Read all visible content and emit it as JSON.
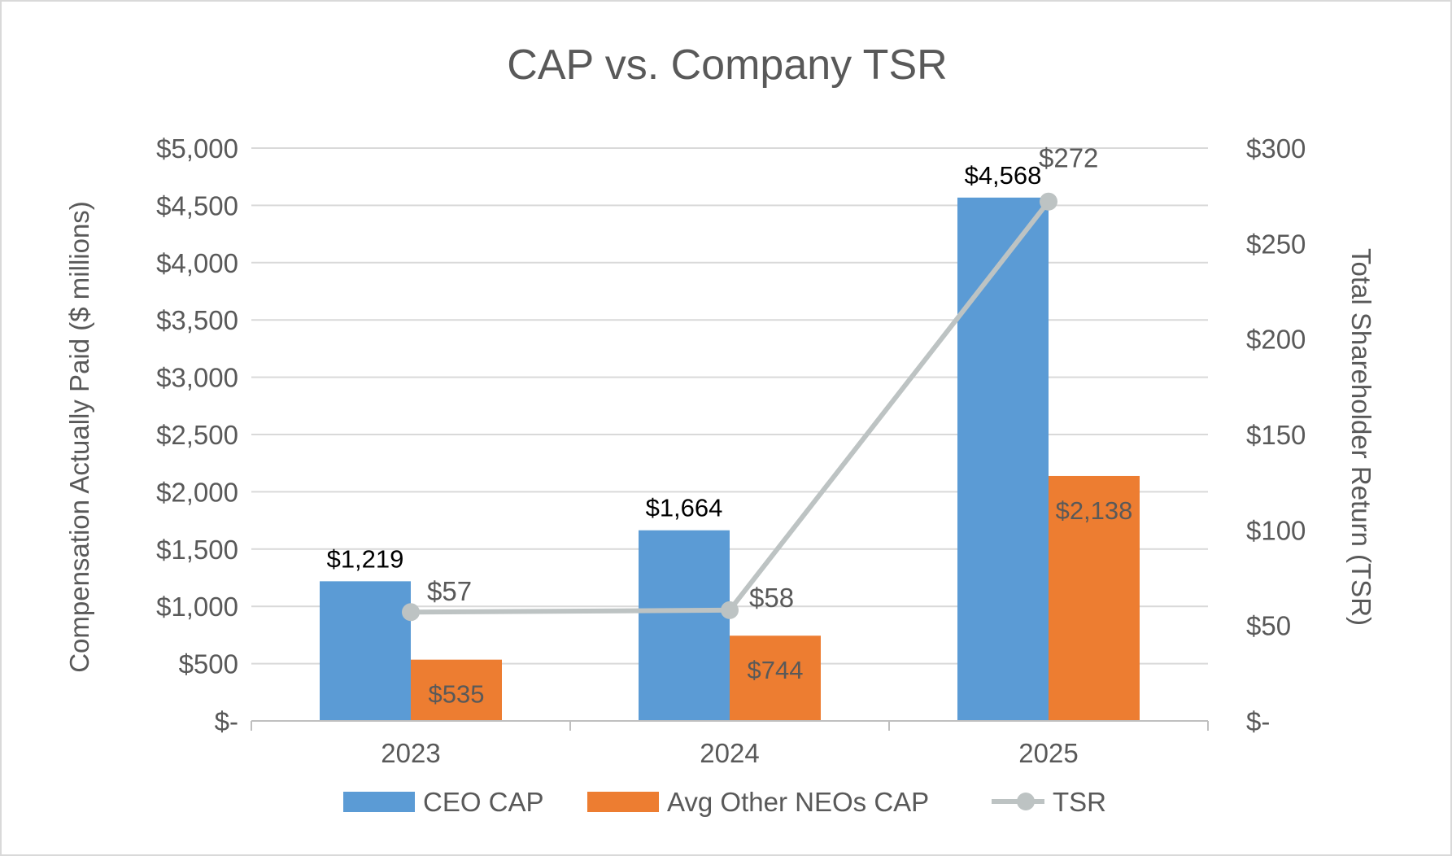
{
  "colors": {
    "ceo": "#5b9bd5",
    "neo": "#ed7d31",
    "tsr": "#bdc3c3",
    "grid": "#d9d9d9",
    "text": "#595959",
    "label_dark": "#000000"
  },
  "chart_data": {
    "type": "bar",
    "title": "CAP vs. Company TSR",
    "ylabel": "Compensation Actually Paid ($ millions)",
    "y2label": "Total Shareholder Return (TSR)",
    "categories": [
      "2023",
      "2024",
      "2025"
    ],
    "ylim": [
      0,
      5000
    ],
    "y2lim": [
      0,
      300
    ],
    "y_ticks": [
      "$-",
      "$500",
      "$1,000",
      "$1,500",
      "$2,000",
      "$2,500",
      "$3,000",
      "$3,500",
      "$4,000",
      "$4,500",
      "$5,000"
    ],
    "y2_ticks": [
      "$-",
      "$50",
      "$100",
      "$150",
      "$200",
      "$250",
      "$300"
    ],
    "grid": true,
    "legend_position": "bottom",
    "series": [
      {
        "name": "CEO CAP",
        "type": "bar",
        "axis": "left",
        "values": [
          1219,
          1664,
          4568
        ],
        "labels": [
          "$1,219",
          "$1,664",
          "$4,568"
        ]
      },
      {
        "name": "Avg Other NEOs CAP",
        "type": "bar",
        "axis": "left",
        "values": [
          535,
          744,
          2138
        ],
        "labels": [
          "$535",
          "$744",
          "$2,138"
        ]
      },
      {
        "name": "TSR",
        "type": "line",
        "axis": "right",
        "values": [
          57,
          58,
          272
        ],
        "labels": [
          "$57",
          "$58",
          "$272"
        ]
      }
    ]
  }
}
